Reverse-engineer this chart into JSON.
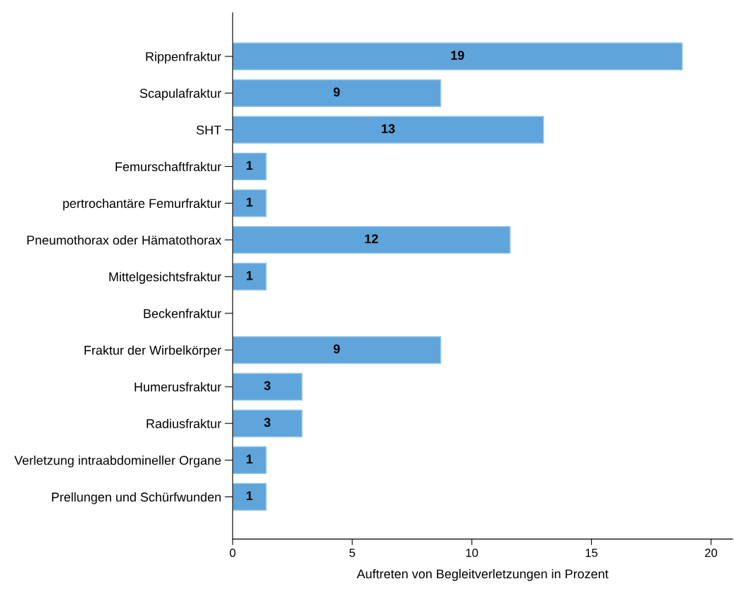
{
  "chart_data": {
    "type": "bar",
    "orientation": "horizontal",
    "xlabel": "Auftreten von Begleitverletzungen in Prozent",
    "categories": [
      "Rippenfraktur",
      "Scapulafraktur",
      "SHT",
      "Femurschaftfraktur",
      "pertrochantäre Femurfraktur",
      "Pneumothorax oder Hämatothorax",
      "Mittelgesichtsfraktur",
      "Beckenfraktur",
      "Fraktur der Wirbelkörper",
      "Humerusfraktur",
      "Radiusfraktur",
      "Verletzung intraabdomineller Organe",
      "Prellungen und Schürfwunden"
    ],
    "values": [
      18.8,
      8.7,
      13.0,
      1.4,
      1.4,
      11.6,
      1.4,
      0,
      8.7,
      2.9,
      2.9,
      1.4,
      1.4
    ],
    "value_labels": [
      "19",
      "9",
      "13",
      "1",
      "1",
      "12",
      "1",
      null,
      "9",
      "3",
      "3",
      "1",
      "1"
    ],
    "color": "#5fa5db",
    "xlim": [
      0,
      20.9
    ],
    "xticks": [
      0,
      5,
      10,
      15,
      20
    ],
    "grid": false,
    "legend": false
  }
}
